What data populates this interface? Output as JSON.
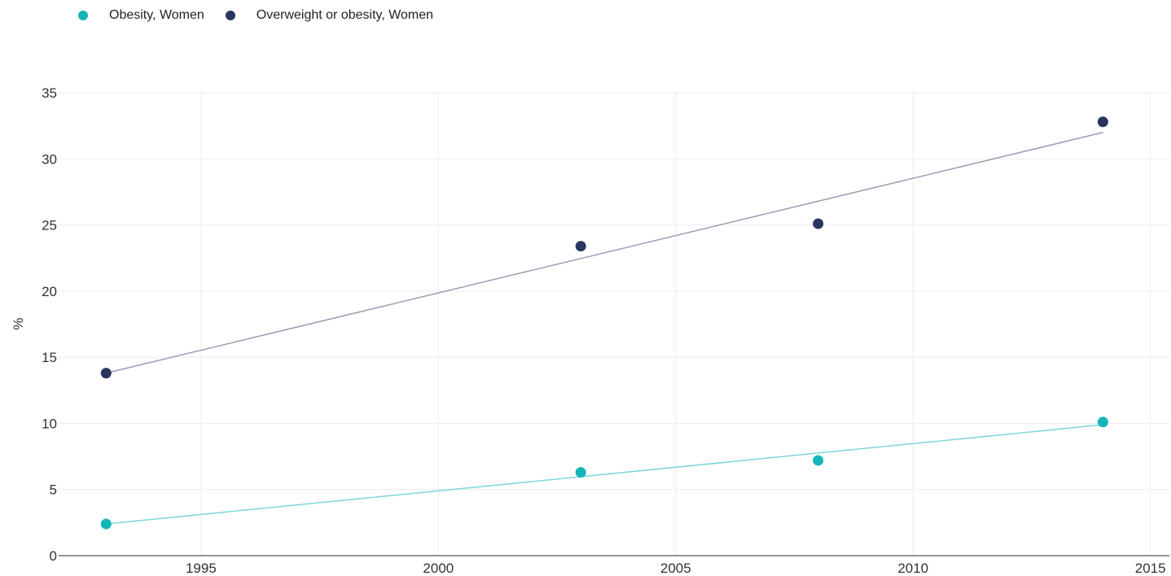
{
  "chart_data": {
    "type": "scatter",
    "title": "",
    "xlabel": "",
    "ylabel": "%",
    "xlim": [
      1992,
      2015.4
    ],
    "ylim": [
      0,
      35
    ],
    "xticks": [
      1995,
      2000,
      2005,
      2010,
      2015
    ],
    "yticks": [
      0,
      5,
      10,
      15,
      20,
      25,
      30,
      35
    ],
    "grid": true,
    "legend_position": "top-left",
    "series": [
      {
        "name": "Obesity, Women",
        "color": "#14b5b8",
        "trend_color": "#7fd6d8",
        "points": [
          {
            "x": 1993,
            "y": 2.4
          },
          {
            "x": 2003,
            "y": 6.3
          },
          {
            "x": 2008,
            "y": 7.2
          },
          {
            "x": 2014,
            "y": 10.1
          }
        ],
        "trendline": [
          {
            "x": 1993,
            "y": 2.4
          },
          {
            "x": 2014,
            "y": 9.9
          }
        ]
      },
      {
        "name": "Overweight or obesity, Women",
        "color": "#283660",
        "trend_color": "#9a9db2",
        "points": [
          {
            "x": 1993,
            "y": 13.8
          },
          {
            "x": 2003,
            "y": 23.4
          },
          {
            "x": 2008,
            "y": 25.1
          },
          {
            "x": 2014,
            "y": 32.8
          }
        ],
        "trendline": [
          {
            "x": 1993,
            "y": 13.8
          },
          {
            "x": 2014,
            "y": 32.0
          }
        ]
      }
    ]
  }
}
